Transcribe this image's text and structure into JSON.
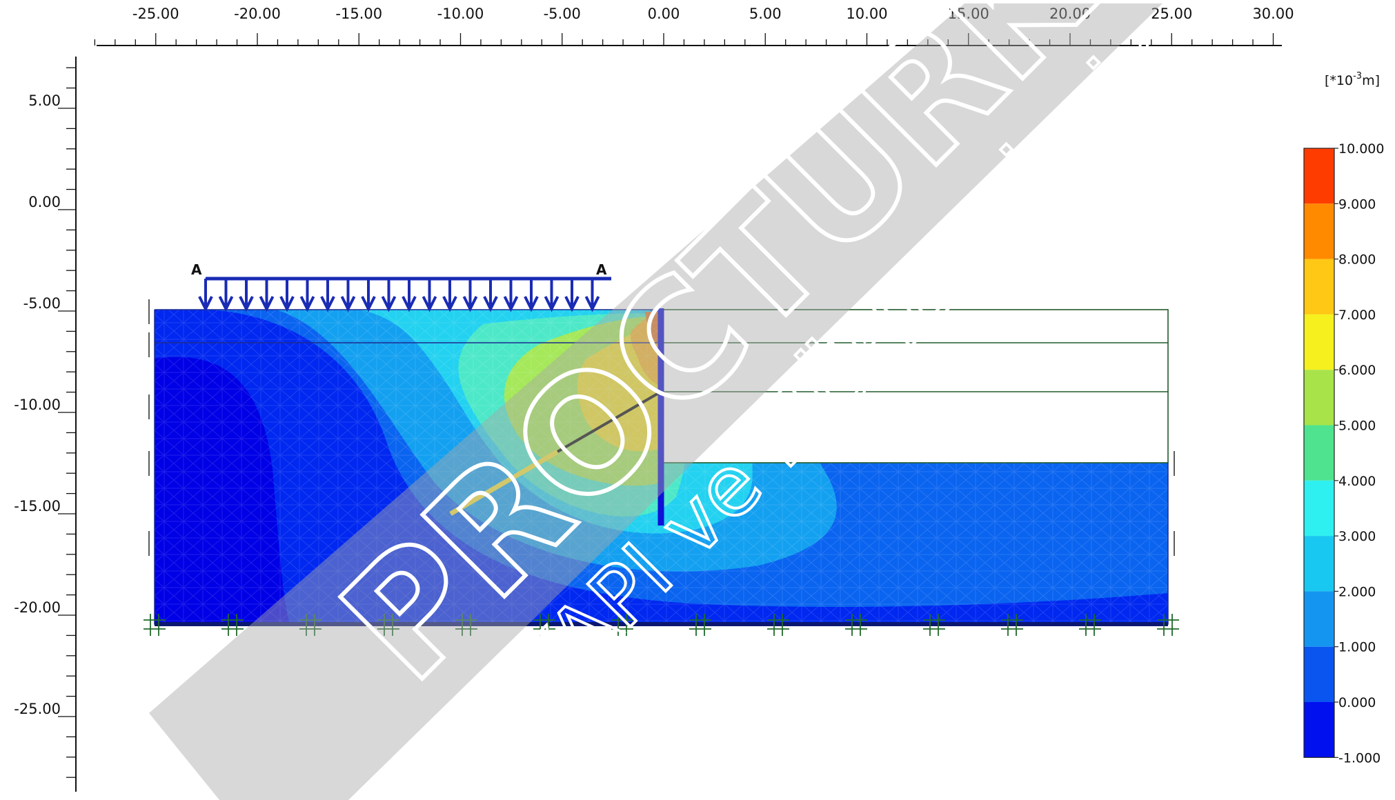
{
  "x_axis": {
    "ticks": [
      "-25.00",
      "-20.00",
      "-15.00",
      "-10.00",
      "-5.00",
      "0.00",
      "5.00",
      "10.00",
      "15.00",
      "20.00",
      "25.00",
      "30.00"
    ]
  },
  "y_axis": {
    "ticks": [
      "5.00",
      "0.00",
      "-5.00",
      "-10.00",
      "-15.00",
      "-20.00",
      "-25.00"
    ]
  },
  "legend": {
    "unit": "[*10-3m]",
    "unit_base": "[*10",
    "unit_exp": "-3",
    "unit_tail": "m]",
    "labels": [
      "10.000",
      "9.000",
      "8.000",
      "7.000",
      "6.000",
      "5.000",
      "4.000",
      "3.000",
      "2.000",
      "1.000",
      "0.000",
      "-1.000"
    ],
    "colors": [
      "#ff3c00",
      "#ff8a00",
      "#ffc814",
      "#f5f01e",
      "#a8e34a",
      "#4fe38f",
      "#2ef0f0",
      "#19c8f0",
      "#1496f0",
      "#0a55f0",
      "#0010ee"
    ]
  },
  "load": {
    "left_label": "A",
    "right_label": "A",
    "color": "#1a2bb4"
  },
  "model": {
    "soil_colors": [
      "#0000e6",
      "#0028f0",
      "#0a64f0",
      "#14a0f0",
      "#23d2f0",
      "#4de8c8",
      "#a5e85a",
      "#f0e12d",
      "#f5b428",
      "#e0782a"
    ]
  },
  "watermark": {
    "brand": "PROCTURK",
    "sub": "YAPI ve MÜHENDİSLİK",
    "reg": "®"
  }
}
